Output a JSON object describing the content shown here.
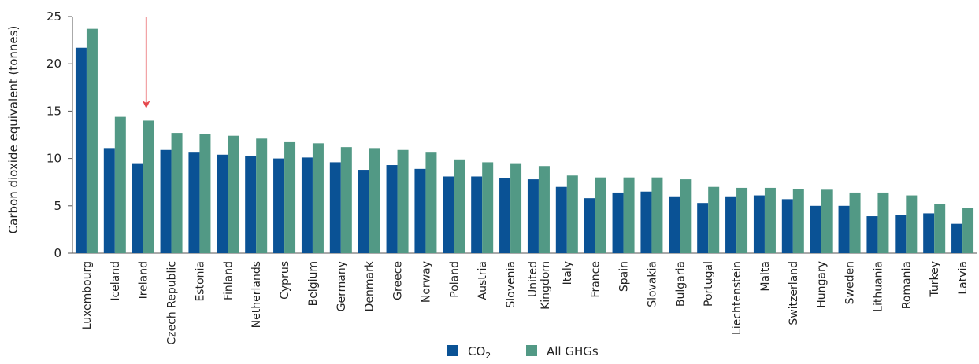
{
  "chart_data": {
    "type": "bar",
    "title": "",
    "xlabel": "",
    "ylabel": "Carbon dioxide equivalent (tonnes)",
    "ylim": [
      0,
      25
    ],
    "yticks": [
      0,
      5,
      10,
      15,
      20,
      25
    ],
    "grid": false,
    "legend_position": "bottom-center",
    "categories": [
      [
        "Luxembourg"
      ],
      [
        "Iceland"
      ],
      [
        "Ireland"
      ],
      [
        "Czech Republic"
      ],
      [
        "Estonia"
      ],
      [
        "Finland"
      ],
      [
        "Netherlands"
      ],
      [
        "Cyprus"
      ],
      [
        "Belgium"
      ],
      [
        "Germany"
      ],
      [
        "Denmark"
      ],
      [
        "Greece"
      ],
      [
        "Norway"
      ],
      [
        "Poland"
      ],
      [
        "Austria"
      ],
      [
        "Slovenia"
      ],
      [
        "United",
        "Kingdom"
      ],
      [
        "Italy"
      ],
      [
        "France"
      ],
      [
        "Spain"
      ],
      [
        "Slovakia"
      ],
      [
        "Bulgaria"
      ],
      [
        "Portugal"
      ],
      [
        "Liechtenstein"
      ],
      [
        "Malta"
      ],
      [
        "Switzerland"
      ],
      [
        "Hungary"
      ],
      [
        "Sweden"
      ],
      [
        "Lithuania"
      ],
      [
        "Romania"
      ],
      [
        "Turkey"
      ],
      [
        "Latvia"
      ]
    ],
    "series": [
      {
        "name_main": "CO",
        "name_sub": "2",
        "color": "#0a5295",
        "values": [
          21.7,
          11.1,
          9.5,
          10.9,
          10.7,
          10.4,
          10.3,
          10.0,
          10.1,
          9.6,
          8.8,
          9.3,
          8.9,
          8.1,
          8.1,
          7.9,
          7.8,
          7.0,
          5.8,
          6.4,
          6.5,
          6.0,
          5.3,
          6.0,
          6.1,
          5.7,
          5.0,
          5.0,
          3.9,
          4.0,
          4.2,
          3.1
        ]
      },
      {
        "name_main": "All GHGs",
        "name_sub": "",
        "color": "#529985",
        "values": [
          23.7,
          14.4,
          14.0,
          12.7,
          12.6,
          12.4,
          12.1,
          11.8,
          11.6,
          11.2,
          11.1,
          10.9,
          10.7,
          9.9,
          9.6,
          9.5,
          9.2,
          8.2,
          8.0,
          8.0,
          8.0,
          7.8,
          7.0,
          6.9,
          6.9,
          6.8,
          6.7,
          6.4,
          6.4,
          6.1,
          5.2,
          4.8
        ]
      }
    ],
    "annotations": [
      {
        "type": "arrow",
        "target_category": "Ireland",
        "color": "#e5484d"
      }
    ]
  }
}
